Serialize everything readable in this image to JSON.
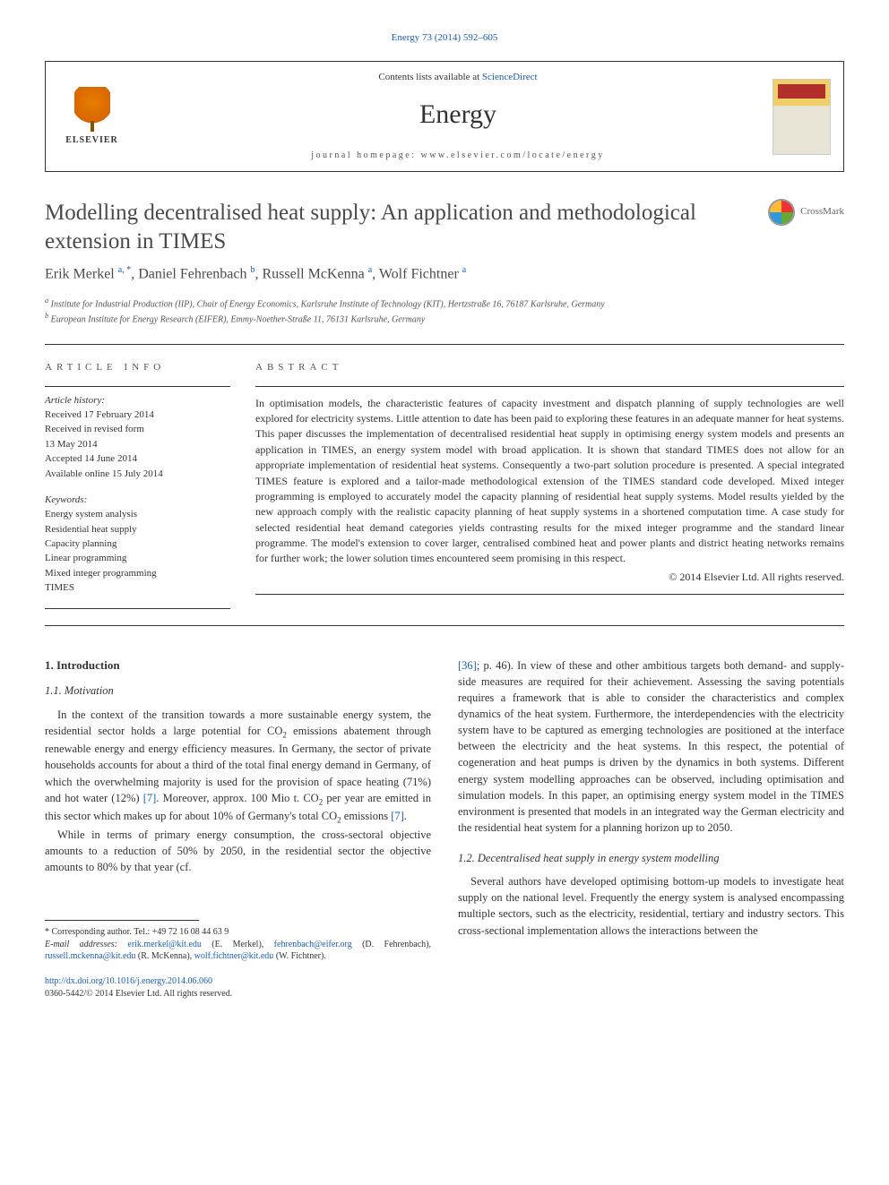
{
  "journal_ref": "Energy 73 (2014) 592–605",
  "header": {
    "contents_prefix": "Contents lists available at ",
    "contents_link": "ScienceDirect",
    "journal_name": "Energy",
    "homepage_label": "journal homepage: www.elsevier.com/locate/energy",
    "elsevier": "ELSEVIER"
  },
  "crossmark": "CrossMark",
  "title": "Modelling decentralised heat supply: An application and methodological extension in TIMES",
  "authors_html": "Erik Merkel <sup>a, *</sup>, Daniel Fehrenbach <sup>b</sup>, Russell McKenna <sup>a</sup>, Wolf Fichtner <sup>a</sup>",
  "affiliations": [
    "a Institute for Industrial Production (IIP), Chair of Energy Economics, Karlsruhe Institute of Technology (KIT), Hertzstraße 16, 76187 Karlsruhe, Germany",
    "b European Institute for Energy Research (EIFER), Emmy-Noether-Straße 11, 76131 Karlsruhe, Germany"
  ],
  "article_info": {
    "heading": "ARTICLE INFO",
    "history_label": "Article history:",
    "history": [
      "Received 17 February 2014",
      "Received in revised form",
      "13 May 2014",
      "Accepted 14 June 2014",
      "Available online 15 July 2014"
    ],
    "keywords_label": "Keywords:",
    "keywords": [
      "Energy system analysis",
      "Residential heat supply",
      "Capacity planning",
      "Linear programming",
      "Mixed integer programming",
      "TIMES"
    ]
  },
  "abstract": {
    "heading": "ABSTRACT",
    "text": "In optimisation models, the characteristic features of capacity investment and dispatch planning of supply technologies are well explored for electricity systems. Little attention to date has been paid to exploring these features in an adequate manner for heat systems. This paper discusses the implementation of decentralised residential heat supply in optimising energy system models and presents an application in TIMES, an energy system model with broad application. It is shown that standard TIMES does not allow for an appropriate implementation of residential heat systems. Consequently a two-part solution procedure is presented. A special integrated TIMES feature is explored and a tailor-made methodological extension of the TIMES standard code developed. Mixed integer programming is employed to accurately model the capacity planning of residential heat supply systems. Model results yielded by the new approach comply with the realistic capacity planning of heat supply systems in a shortened computation time. A case study for selected residential heat demand categories yields contrasting results for the mixed integer programme and the standard linear programme. The model's extension to cover larger, centralised combined heat and power plants and district heating networks remains for further work; the lower solution times encountered seem promising in this respect.",
    "copyright": "© 2014 Elsevier Ltd. All rights reserved."
  },
  "body": {
    "s1": "1. Introduction",
    "s11": "1.1. Motivation",
    "p1a": "In the context of the transition towards a more sustainable energy system, the residential sector holds a large potential for CO",
    "p1b": " emissions abatement through renewable energy and energy efficiency measures. In Germany, the sector of private households accounts for about a third of the total final energy demand in Germany, of which the overwhelming majority is used for the provision of space heating (71%) and hot water (12%) ",
    "p1c": ". Moreover, approx. 100 Mio t. CO",
    "p1d": " per year are emitted in this sector which makes up for about 10% of Germany's total CO",
    "p1e": " emissions ",
    "ref7": "[7]",
    "p2": "While in terms of primary energy consumption, the cross-sectoral objective amounts to a reduction of 50% by 2050, in the residential sector the objective amounts to 80% by that year (cf.",
    "ref36": "[36]",
    "p3": "; p. 46). In view of these and other ambitious targets both demand- and supply-side measures are required for their achievement. Assessing the saving potentials requires a framework that is able to consider the characteristics and complex dynamics of the heat system. Furthermore, the interdependencies with the electricity system have to be captured as emerging technologies are positioned at the interface between the electricity and the heat systems. In this respect, the potential of cogeneration and heat pumps is driven by the dynamics in both systems. Different energy system modelling approaches can be observed, including optimisation and simulation models. In this paper, an optimising energy system model in the TIMES environment is presented that models in an integrated way the German electricity and the residential heat system for a planning horizon up to 2050.",
    "s12": "1.2. Decentralised heat supply in energy system modelling",
    "p4": "Several authors have developed optimising bottom-up models to investigate heat supply on the national level. Frequently the energy system is analysed encompassing multiple sectors, such as the electricity, residential, tertiary and industry sectors. This cross-sectional implementation allows the interactions between the"
  },
  "footnote": {
    "corr": "* Corresponding author. Tel.: +49 72 16 08 44 63 9",
    "email_label": "E-mail addresses:",
    "emails": [
      {
        "addr": "erik.merkel@kit.edu",
        "name": "(E. Merkel),"
      },
      {
        "addr": "fehrenbach@eifer.org",
        "name": "(D. Fehrenbach),"
      },
      {
        "addr": "russell.mckenna@kit.edu",
        "name": "(R. McKenna),"
      },
      {
        "addr": "wolf.fichtner@kit.edu",
        "name": "(W. Fichtner)."
      }
    ]
  },
  "doi": {
    "link": "http://dx.doi.org/10.1016/j.energy.2014.06.060",
    "issn": "0360-5442/© 2014 Elsevier Ltd. All rights reserved."
  },
  "colors": {
    "link": "#1a5db4",
    "text": "#333333",
    "heading": "#4a4a4a",
    "elsevier_orange": "#e87e00"
  }
}
